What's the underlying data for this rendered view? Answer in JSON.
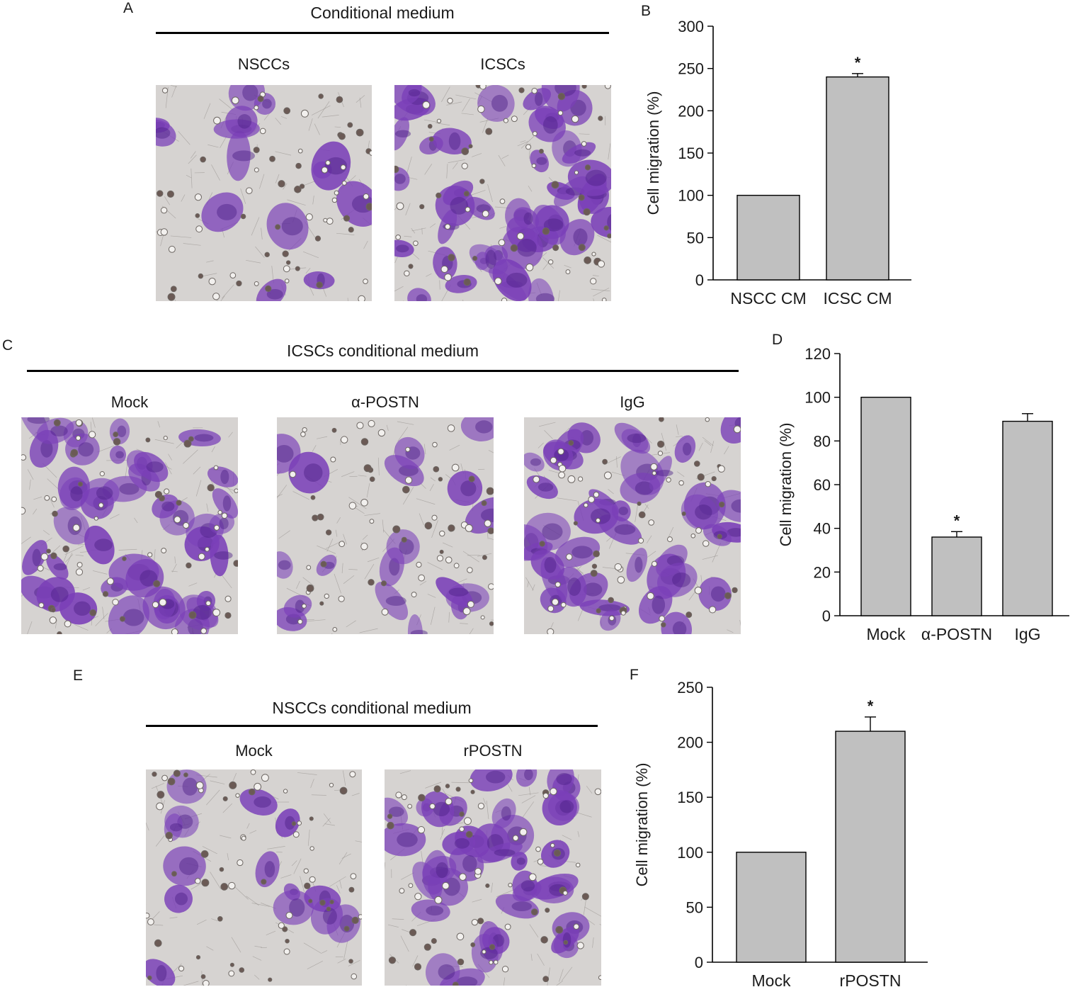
{
  "panel_labels": {
    "A": "A",
    "B": "B",
    "C": "C",
    "D": "D",
    "E": "E",
    "F": "F"
  },
  "panelA": {
    "heading": "Conditional medium",
    "images": [
      {
        "label": "NSCCs",
        "density": 0.25
      },
      {
        "label": "ICSCs",
        "density": 1.0
      }
    ]
  },
  "panelC": {
    "heading": "ICSCs conditional medium",
    "images": [
      {
        "label": "Mock",
        "density": 0.95
      },
      {
        "label": "α-POSTN",
        "density": 0.35
      },
      {
        "label": "IgG",
        "density": 0.9
      }
    ]
  },
  "panelE": {
    "heading": "NSCCs conditional medium",
    "images": [
      {
        "label": "Mock",
        "density": 0.25
      },
      {
        "label": "rPOSTN",
        "density": 0.85
      }
    ]
  },
  "colors": {
    "bar_fill": "#c0c0c0",
    "stain": "#7a3fb8",
    "background": "#d6d3d1"
  },
  "chart_data": [
    {
      "type": "bar",
      "panel": "B",
      "categories": [
        "NSCC CM",
        "ICSC CM"
      ],
      "values": [
        100,
        240
      ],
      "errors": [
        0,
        4
      ],
      "significance": [
        "",
        "*"
      ],
      "ylabel": "Cell migration (%)",
      "ylim": [
        0,
        300
      ],
      "yticks": [
        0,
        50,
        100,
        150,
        200,
        250,
        300
      ]
    },
    {
      "type": "bar",
      "panel": "D",
      "categories": [
        "Mock",
        "α-POSTN",
        "IgG"
      ],
      "values": [
        100,
        36,
        89
      ],
      "errors": [
        0,
        2.5,
        3.5
      ],
      "significance": [
        "",
        "*",
        ""
      ],
      "ylabel": "Cell migration (%)",
      "ylim": [
        0,
        120
      ],
      "yticks": [
        0,
        20,
        40,
        60,
        80,
        100,
        120
      ]
    },
    {
      "type": "bar",
      "panel": "F",
      "categories": [
        "Mock",
        "rPOSTN"
      ],
      "values": [
        100,
        210
      ],
      "errors": [
        0,
        13
      ],
      "significance": [
        "",
        "*"
      ],
      "ylabel": "Cell migration (%)",
      "ylim": [
        0,
        250
      ],
      "yticks": [
        0,
        50,
        100,
        150,
        200,
        250
      ]
    }
  ]
}
